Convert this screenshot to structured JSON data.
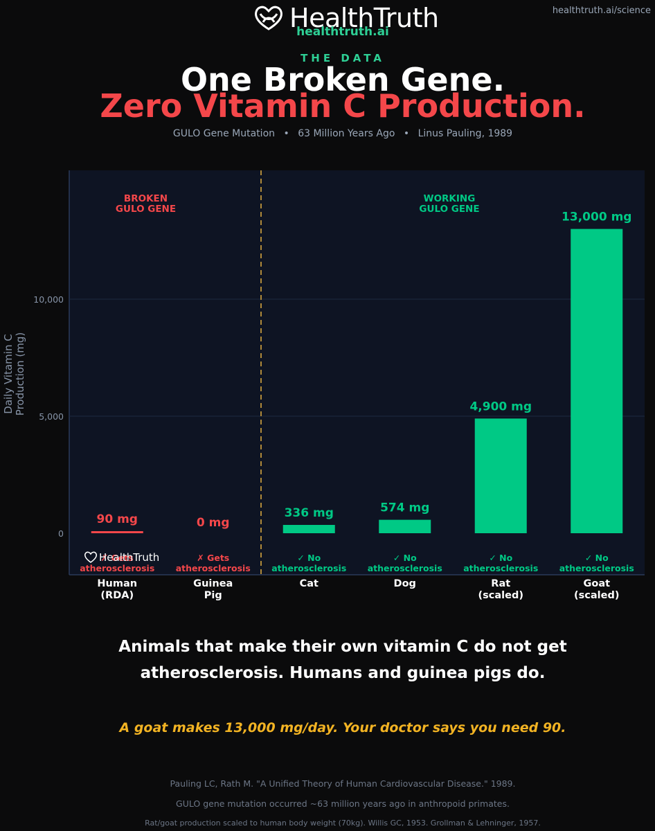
{
  "header": {
    "brand": "HealthTruth",
    "domain": "healthtruth.ai",
    "site_link": "healthtruth.ai/science",
    "kicker": "THE DATA",
    "title_line1": "One Broken Gene.",
    "title_line2": "Zero Vitamin C Production.",
    "subtitle_parts": [
      "GULO Gene Mutation",
      "63 Million Years Ago",
      "Linus Pauling, 1989"
    ],
    "subtitle_separator": "•"
  },
  "chart_data": {
    "type": "bar",
    "ylabel": "Daily Vitamin C Production (mg)",
    "ylabel_lines": [
      "Daily Vitamin C",
      "Production (mg)"
    ],
    "yticks": [
      0,
      5000,
      10000
    ],
    "ytick_labels": [
      "0",
      "5,000",
      "10,000"
    ],
    "ylim": [
      -1800,
      15500
    ],
    "grid": "horizontal",
    "watermark": "HealthTruth",
    "group_labels": {
      "broken": [
        "BROKEN",
        "GULO GENE"
      ],
      "working": [
        "WORKING",
        "GULO GENE"
      ]
    },
    "categories": [
      {
        "name": [
          "Human",
          "(RDA)"
        ],
        "value": 90,
        "value_label": "90 mg",
        "gene": "broken",
        "note": [
          "✗ Gets",
          "atherosclerosis"
        ]
      },
      {
        "name": [
          "Guinea",
          "Pig"
        ],
        "value": 0,
        "value_label": "0 mg",
        "gene": "broken",
        "note": [
          "✗ Gets",
          "atherosclerosis"
        ]
      },
      {
        "name": [
          "Cat"
        ],
        "value": 336,
        "value_label": "336 mg",
        "gene": "working",
        "note": [
          "✓ No",
          "atherosclerosis"
        ]
      },
      {
        "name": [
          "Dog"
        ],
        "value": 574,
        "value_label": "574 mg",
        "gene": "working",
        "note": [
          "✓ No",
          "atherosclerosis"
        ]
      },
      {
        "name": [
          "Rat",
          "(scaled)"
        ],
        "value": 4900,
        "value_label": "4,900 mg",
        "gene": "working",
        "note": [
          "✓ No",
          "atherosclerosis"
        ]
      },
      {
        "name": [
          "Goat",
          "(scaled)"
        ],
        "value": 13000,
        "value_label": "13,000 mg",
        "gene": "working",
        "note": [
          "✓ No",
          "atherosclerosis"
        ]
      }
    ],
    "colors": {
      "broken": "#f4474a",
      "working": "#00c985",
      "divider": "#b08a3a",
      "panel": "#0e1423",
      "grid": "#1e2a40",
      "tick": "#8794a8"
    }
  },
  "statement_line1": "Animals that make their own vitamin C do not get",
  "statement_line2": "atherosclerosis. Humans and guinea pigs do.",
  "punchline": "A goat makes 13,000 mg/day. Your doctor says you need 90.",
  "references": [
    "Pauling LC, Rath M. \"A Unified Theory of Human Cardiovascular Disease.\" 1989.",
    "GULO gene mutation occurred ~63 million years ago in anthropoid primates.",
    "Rat/goat production scaled to human body weight (70kg). Willis GC, 1953. Grollman & Lehninger, 1957."
  ]
}
